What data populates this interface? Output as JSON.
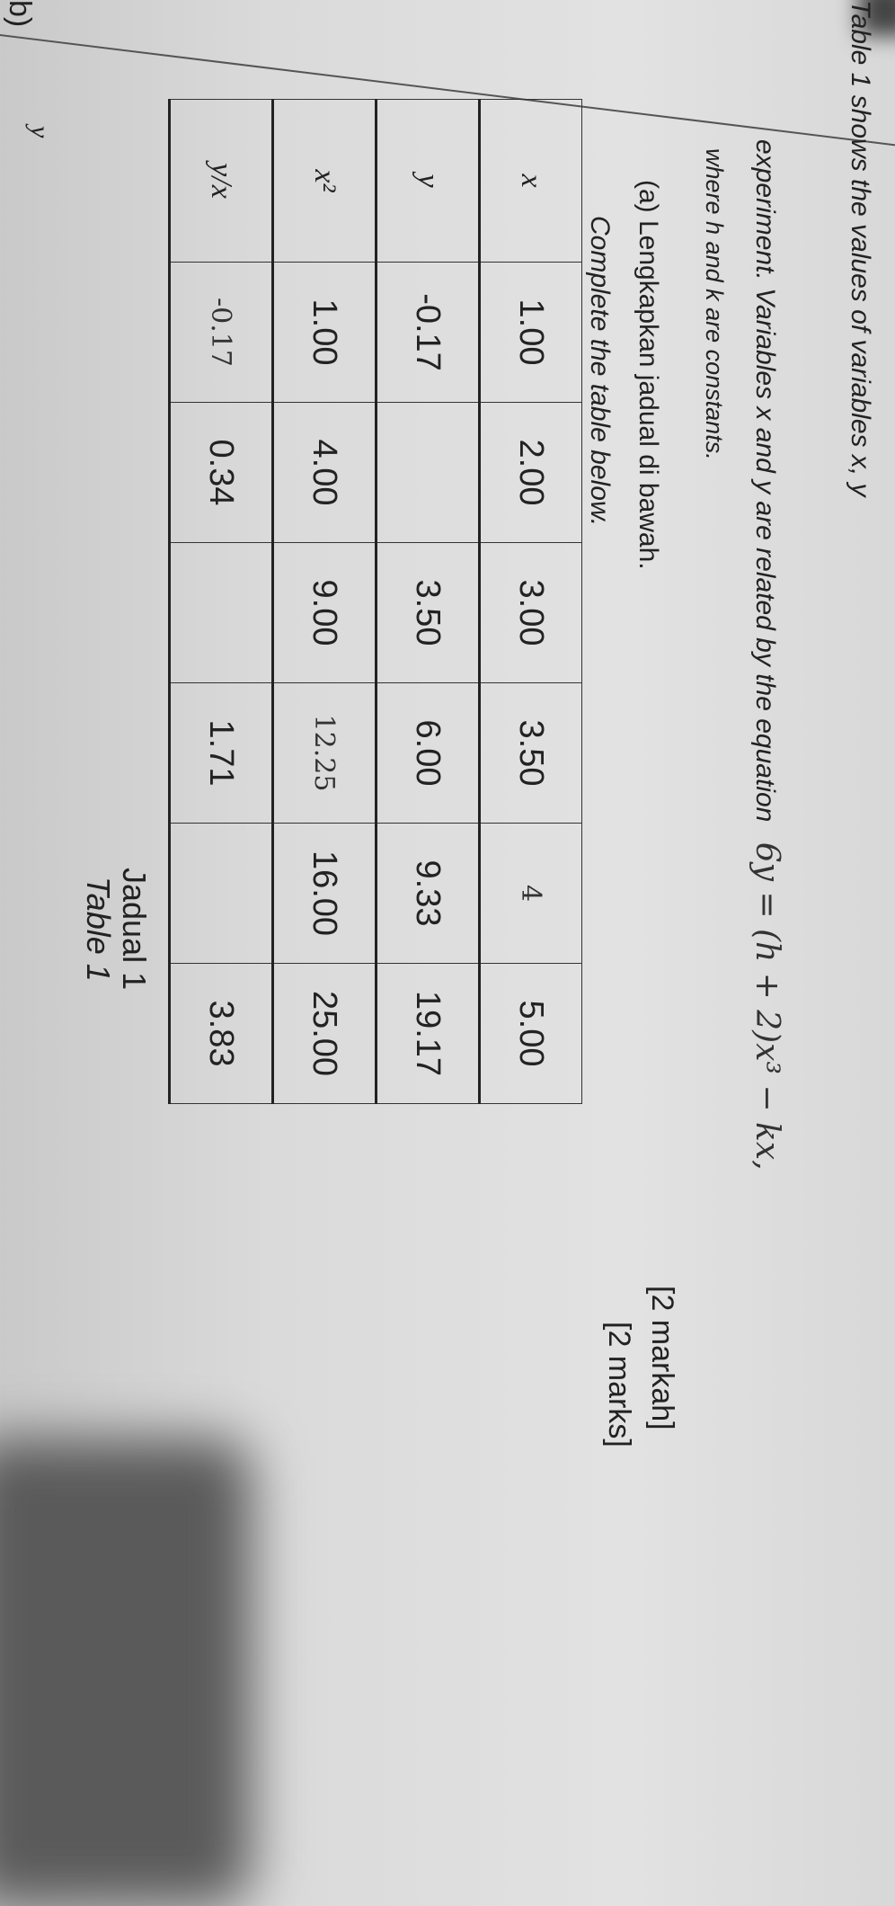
{
  "intro_line1": "Table 1 shows the values of variables x, y",
  "intro_line2": "experiment. Variables x and y are related by the equation",
  "equation": "6y = (h + 2)x³ − kx,",
  "intro_line3": "where h and k are constants.",
  "part_a_malay": "(a)  Lengkapkan jadual di bawah.",
  "part_a_english": "Complete the table below.",
  "marks_malay": "[2 markah]",
  "marks_english": "[2 marks]",
  "table": {
    "rows": [
      {
        "label": "x",
        "cells": [
          {
            "v": "1.00"
          },
          {
            "v": "2.00"
          },
          {
            "v": "3.00"
          },
          {
            "v": "3.50"
          },
          {
            "v": "4",
            "hand": true
          },
          {
            "v": "5.00"
          }
        ]
      },
      {
        "label": "y",
        "cells": [
          {
            "v": "-0.17"
          },
          {
            "v": ""
          },
          {
            "v": "3.50"
          },
          {
            "v": "6.00"
          },
          {
            "v": "9.33"
          },
          {
            "v": "19.17"
          }
        ]
      },
      {
        "label": "x²",
        "cells": [
          {
            "v": "1.00"
          },
          {
            "v": "4.00"
          },
          {
            "v": "9.00"
          },
          {
            "v": "12.25",
            "hand": true
          },
          {
            "v": "16.00"
          },
          {
            "v": "25.00"
          }
        ]
      },
      {
        "label": "y/x",
        "cells": [
          {
            "v": "-0.17",
            "hand": true
          },
          {
            "v": "0.34"
          },
          {
            "v": ""
          },
          {
            "v": "1.71"
          },
          {
            "v": ""
          },
          {
            "v": "3.83"
          }
        ]
      }
    ]
  },
  "caption_malay": "Jadual 1",
  "caption_english": "Table 1",
  "part_b": "b)",
  "part_b_var": "y"
}
